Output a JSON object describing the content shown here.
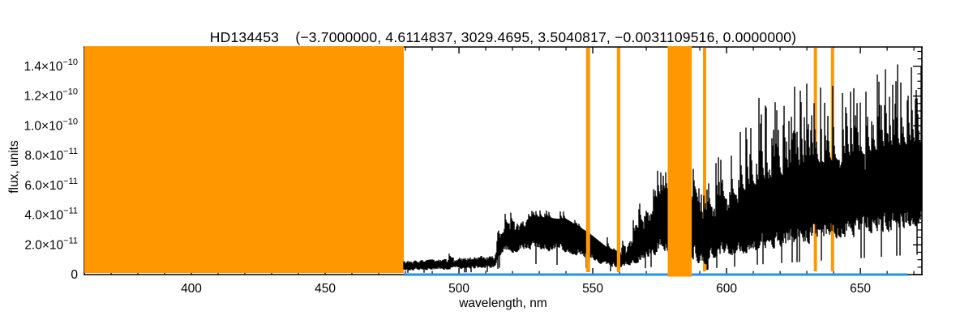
{
  "figure": {
    "background": "#FFFFFF"
  },
  "chart_data": {
    "type": "line",
    "title": "HD134453    (−3.7000000, 4.6114837, 3029.4695, 3.5040817, −0.0031109516, 0.0000000)",
    "xlabel": "wavelength, nm",
    "ylabel": "flux, units",
    "xlim": [
      360,
      673
    ],
    "ylim": [
      0,
      1.53e-10
    ],
    "grid": false,
    "legend": null,
    "x_major_ticks": [
      400,
      450,
      500,
      550,
      600,
      650
    ],
    "x_minor_step": 10,
    "y_minor_step": 5e-12,
    "y_ticks": [
      {
        "value": 0,
        "base": "0",
        "exp": ""
      },
      {
        "value": 2e-11,
        "base": "2.0×10",
        "exp": "−11"
      },
      {
        "value": 4e-11,
        "base": "4.0×10",
        "exp": "−11"
      },
      {
        "value": 6e-11,
        "base": "6.0×10",
        "exp": "−11"
      },
      {
        "value": 8e-11,
        "base": "8.0×10",
        "exp": "−11"
      },
      {
        "value": 1e-10,
        "base": "1.0×10",
        "exp": "−10"
      },
      {
        "value": 1.2e-10,
        "base": "1.2×10",
        "exp": "−10"
      },
      {
        "value": 1.4e-10,
        "base": "1.4×10",
        "exp": "−10"
      }
    ],
    "colors": {
      "spectrum": "#000000",
      "mask": "#FF9800",
      "baseline": "#1E90FF",
      "axis": "#000000",
      "text": "#000000"
    },
    "masked_regions_nm": [
      {
        "from": 360.0,
        "to": 479.4,
        "layer": "under"
      },
      {
        "from": 547.5,
        "to": 549.0,
        "layer": "over"
      },
      {
        "from": 559.0,
        "to": 560.3,
        "layer": "over"
      },
      {
        "from": 578.0,
        "to": 587.0,
        "layer": "cover"
      },
      {
        "from": 591.2,
        "to": 592.4,
        "layer": "under"
      },
      {
        "from": 632.6,
        "to": 633.8,
        "layer": "under"
      },
      {
        "from": 639.0,
        "to": 640.2,
        "layer": "under"
      }
    ],
    "baseline": {
      "value": 0,
      "from_nm": 479.4,
      "to_nm": 667.6
    },
    "spectrum": {
      "from_nm": 479.4,
      "to_nm": 672.8,
      "units_scale": 1e-11,
      "seed": 42,
      "envelope_nm_lo_hi": [
        [
          479.4,
          0.25,
          0.95
        ],
        [
          495,
          0.3,
          1.1
        ],
        [
          513,
          0.4,
          1.4
        ],
        [
          516,
          1.3,
          3.3
        ],
        [
          527,
          1.6,
          3.9
        ],
        [
          540,
          1.4,
          3.7
        ],
        [
          548,
          1.0,
          2.8
        ],
        [
          555,
          0.55,
          1.8
        ],
        [
          560,
          0.35,
          1.5
        ],
        [
          564,
          0.6,
          2.4
        ],
        [
          569,
          0.9,
          3.8
        ],
        [
          574,
          1.3,
          5.2
        ],
        [
          578,
          1.4,
          5.6
        ],
        [
          585,
          1.3,
          5.2
        ],
        [
          588,
          0.8,
          5.8
        ],
        [
          590.5,
          0.4,
          3.2
        ],
        [
          592.5,
          0.7,
          4.2
        ],
        [
          596,
          1.0,
          4.8
        ],
        [
          604,
          1.2,
          5.4
        ],
        [
          612,
          1.5,
          6.2
        ],
        [
          620,
          1.7,
          6.6
        ],
        [
          632,
          2.0,
          7.4
        ],
        [
          645,
          2.3,
          7.8
        ],
        [
          656,
          2.6,
          8.3
        ],
        [
          667,
          2.9,
          8.7
        ],
        [
          672.8,
          3.0,
          8.8
        ]
      ],
      "spike_max": [
        [
          479,
          1.6
        ],
        [
          513,
          1.9
        ],
        [
          516,
          4.4
        ],
        [
          540,
          4.3
        ],
        [
          555,
          2.6
        ],
        [
          560,
          2.0
        ],
        [
          566,
          4.0
        ],
        [
          572,
          7.0
        ],
        [
          578,
          7.3
        ],
        [
          587,
          7.8
        ],
        [
          591,
          6.0
        ],
        [
          596,
          8.0
        ],
        [
          604,
          9.8
        ],
        [
          613,
          12.4
        ],
        [
          622,
          12.7
        ],
        [
          631,
          13.6
        ],
        [
          640,
          12.9
        ],
        [
          650,
          13.3
        ],
        [
          660,
          14.3
        ],
        [
          667,
          14.6
        ],
        [
          672.8,
          14.2
        ]
      ],
      "spike_prob": [
        [
          479,
          0.03
        ],
        [
          514,
          0.03
        ],
        [
          516,
          0.12
        ],
        [
          555,
          0.08
        ],
        [
          563,
          0.2
        ],
        [
          572,
          0.3
        ],
        [
          590,
          0.3
        ],
        [
          600,
          0.35
        ],
        [
          615,
          0.4
        ],
        [
          667,
          0.45
        ]
      ]
    }
  }
}
